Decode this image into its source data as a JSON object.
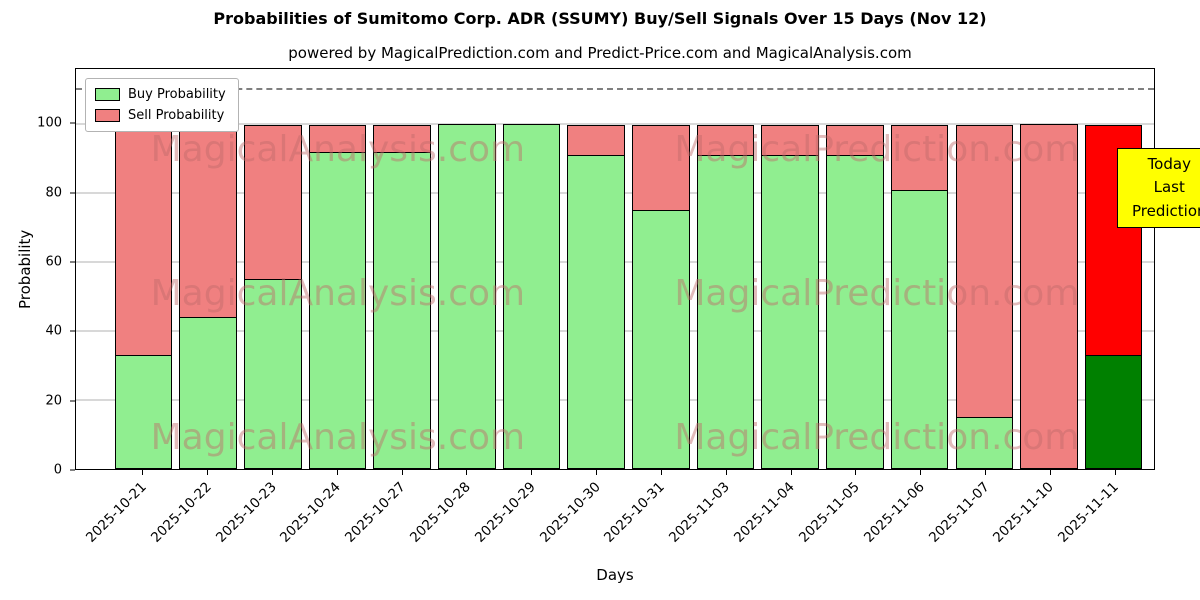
{
  "figure": {
    "title": "Probabilities of Sumitomo Corp. ADR (SSUMY) Buy/Sell Signals Over 15 Days (Nov 12)",
    "subtitle": "powered by MagicalPrediction.com and Predict-Price.com and MagicalAnalysis.com"
  },
  "axes": {
    "xlabel": "Days",
    "ylabel": "Probability",
    "yticks": [
      0,
      20,
      40,
      60,
      80,
      100
    ],
    "ylim": [
      0,
      116
    ],
    "threshold_line_y": 110,
    "grid": true
  },
  "legend": {
    "position": "top-left",
    "items": [
      {
        "label": "Buy Probability",
        "color": "#90ee90"
      },
      {
        "label": "Sell Probability",
        "color": "#f08080"
      }
    ]
  },
  "annotation_box": {
    "line1": "Today",
    "line2": "Last Prediction",
    "bg": "#ffff00"
  },
  "watermarks": {
    "left": "MagicalAnalysis.com",
    "right": "MagicalPrediction.com"
  },
  "colors": {
    "buy": "#90ee90",
    "sell": "#f08080",
    "today_buy": "#008000",
    "today_sell": "#ff0000",
    "grid": "#b0b0b0",
    "threshold": "#7f7f7f",
    "watermark": "#c06a6a",
    "bar_edge": "#000000"
  },
  "chart_data": {
    "type": "bar",
    "stacked": true,
    "title": "Probabilities of Sumitomo Corp. ADR (SSUMY) Buy/Sell Signals Over 15 Days (Nov 12)",
    "xlabel": "Days",
    "ylabel": "Probability",
    "ylim": [
      0,
      116
    ],
    "legend_position": "upper left",
    "grid": true,
    "categories": [
      "2025-10-21",
      "2025-10-22",
      "2025-10-23",
      "2025-10-24",
      "2025-10-27",
      "2025-10-28",
      "2025-10-29",
      "2025-10-30",
      "2025-10-31",
      "2025-11-03",
      "2025-11-04",
      "2025-11-05",
      "2025-11-06",
      "2025-11-07",
      "2025-11-10",
      "2025-11-11"
    ],
    "series": [
      {
        "name": "Buy Probability",
        "values": [
          33,
          44,
          55,
          92,
          92,
          100,
          100,
          91,
          75,
          91,
          91,
          91,
          81,
          15,
          0,
          33
        ]
      },
      {
        "name": "Sell Probability",
        "values": [
          67,
          56,
          45,
          8,
          8,
          0,
          0,
          9,
          25,
          9,
          9,
          9,
          19,
          85,
          100,
          67
        ]
      }
    ],
    "today_index": 15
  }
}
